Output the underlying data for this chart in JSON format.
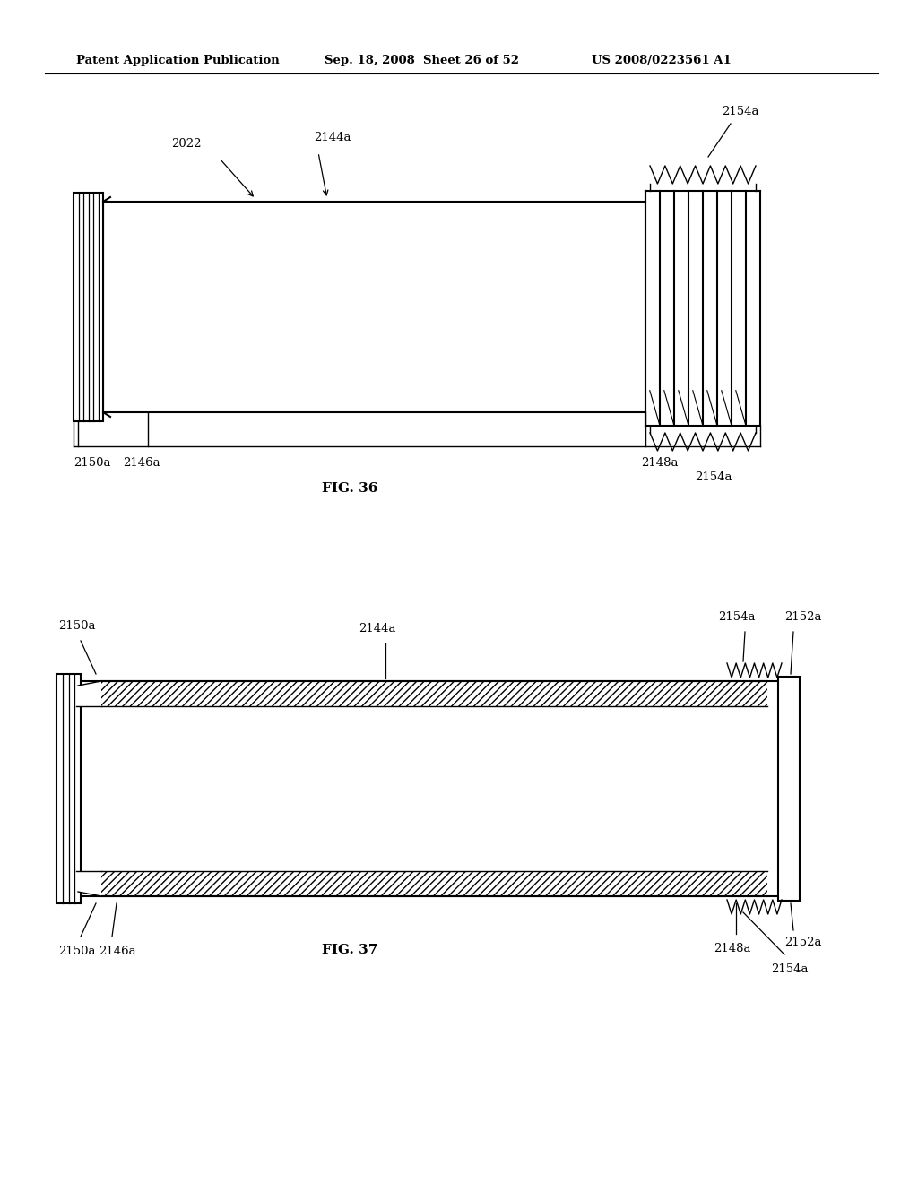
{
  "header_left": "Patent Application Publication",
  "header_mid": "Sep. 18, 2008  Sheet 26 of 52",
  "header_right": "US 2008/0223561 A1",
  "fig36_title": "FIG. 36",
  "fig37_title": "FIG. 37",
  "bg_color": "#ffffff",
  "line_color": "#000000"
}
